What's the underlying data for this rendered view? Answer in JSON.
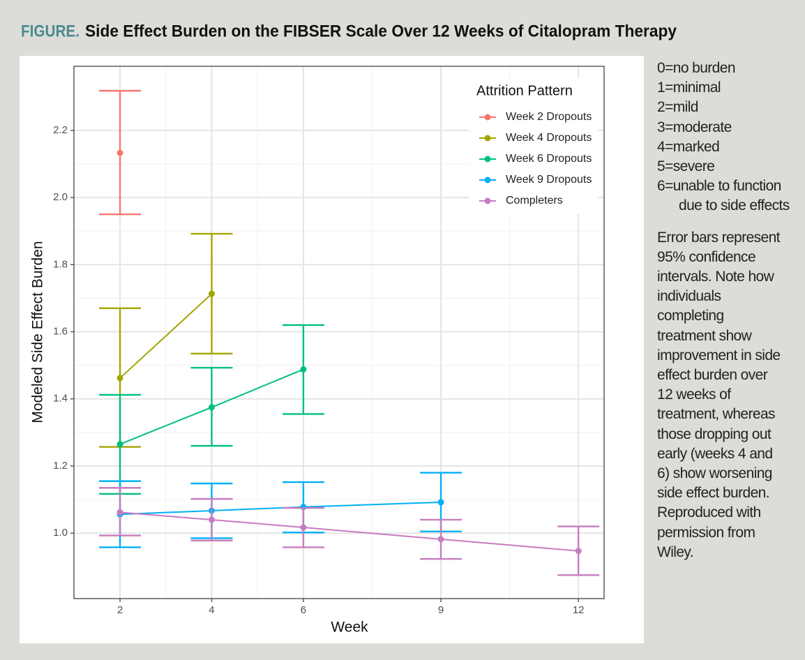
{
  "figure_label": "FIGURE.",
  "chart_data": {
    "type": "line",
    "title": "Side Effect Burden on the FIBSER Scale Over 12 Weeks of Citalopram Therapy",
    "x_label": "Week",
    "y_label": "Modeled Side Effect Burden",
    "legend_title": "Attrition Pattern",
    "legend": "top-right",
    "grid": true,
    "error_bars": true,
    "xlim": [
      0.995,
      12.56
    ],
    "ylim": [
      0.805,
      2.391
    ],
    "xticks": [
      2,
      4,
      6,
      9,
      12
    ],
    "yticks": [
      {
        "value": 1,
        "label": "1.0"
      },
      1.2,
      1.4,
      1.6,
      1.8,
      {
        "value": 2,
        "label": "2.0"
      },
      2.2
    ],
    "series": [
      {
        "name": "Week 2 Dropouts",
        "color": "#f8766d",
        "x": [
          2
        ],
        "values": [
          2.133
        ],
        "lower": [
          1.95
        ],
        "upper": [
          2.318
        ]
      },
      {
        "name": "Week 4 Dropouts",
        "color": "#a3a500",
        "x": [
          2,
          4
        ],
        "values": [
          1.462,
          1.713
        ],
        "lower": [
          1.257,
          1.535
        ],
        "upper": [
          1.67,
          1.892
        ]
      },
      {
        "name": "Week 6 Dropouts",
        "color": "#00bf7d",
        "x": [
          2,
          4,
          6
        ],
        "values": [
          1.265,
          1.375,
          1.488
        ],
        "lower": [
          1.117,
          1.26,
          1.355
        ],
        "upper": [
          1.412,
          1.493,
          1.62
        ]
      },
      {
        "name": "Week 9 Dropouts",
        "color": "#00b0f6",
        "x": [
          2,
          4,
          6,
          9
        ],
        "values": [
          1.056,
          1.067,
          1.078,
          1.092
        ],
        "lower": [
          0.958,
          0.985,
          1.002,
          1.005
        ],
        "upper": [
          1.155,
          1.148,
          1.152,
          1.18
        ]
      },
      {
        "name": "Completers",
        "color": "#c77cbf",
        "x": [
          2,
          4,
          6,
          9,
          12
        ],
        "values": [
          1.062,
          1.04,
          1.017,
          0.982,
          0.947
        ],
        "lower": [
          0.993,
          0.978,
          0.958,
          0.923,
          0.875
        ],
        "upper": [
          1.135,
          1.102,
          1.075,
          1.04,
          1.02
        ]
      }
    ]
  },
  "sidebar": {
    "scale": [
      "0=no burden",
      "1=minimal",
      "2=mild",
      "3=moderate",
      "4=marked",
      "5=severe",
      "6=unable to function due to side effects"
    ],
    "note": "Error bars represent 95% confidence intervals. Note how individuals completing treatment show improvement in side effect burden over 12 weeks of treatment, whereas those dropping out early (weeks 4 and 6) show worsening side effect burden. Reproduced with permission from Wiley."
  }
}
